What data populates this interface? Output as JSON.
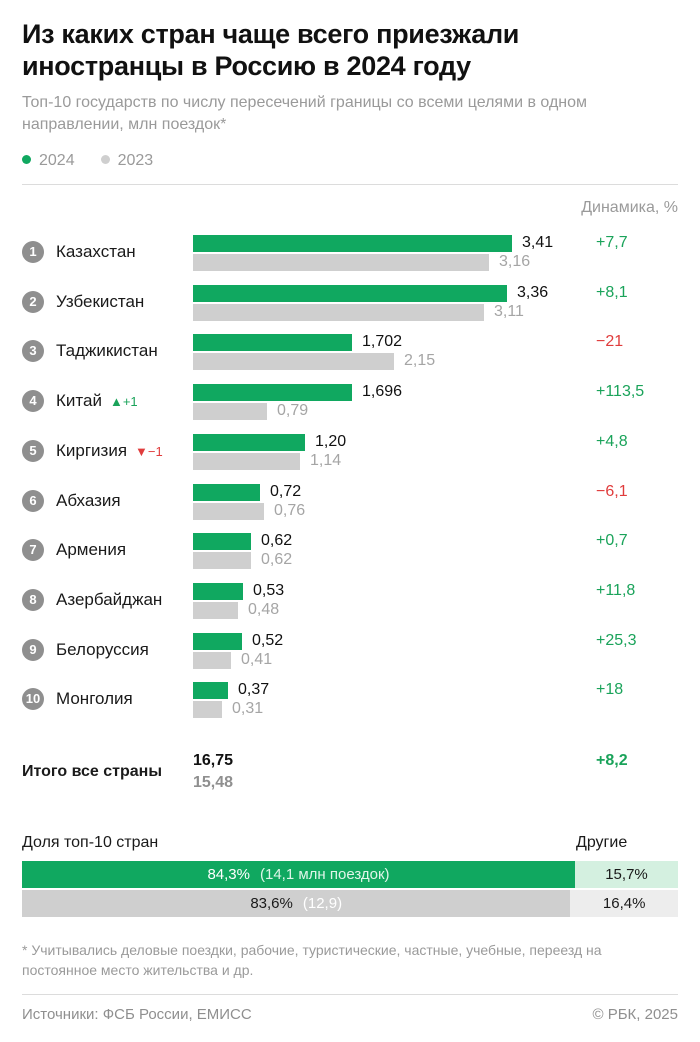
{
  "header": {
    "title": "Из каких стран чаще всего приезжали иностранцы в Россию в 2024 году",
    "subtitle": "Топ-10 государств по числу пересечений границы со всеми целями в одном направлении, млн поездок*"
  },
  "legend": [
    {
      "label": "2024",
      "color": "#10a860"
    },
    {
      "label": "2023",
      "color": "#cfcfcf"
    }
  ],
  "dynamics_header": "Динамика, %",
  "colors": {
    "current": "#10a860",
    "previous": "#cfcfcf",
    "positive": "#1aa35a",
    "negative": "#e03c3c"
  },
  "chart_data": {
    "type": "bar",
    "orientation": "horizontal",
    "xlim": [
      0,
      3.41
    ],
    "rows": [
      {
        "rank": "1",
        "country": "Казахстан",
        "v2024": 3.41,
        "v2023": 3.16,
        "label2024": "3,41",
        "label2023": "3,16",
        "dynamics": "+7,7",
        "trend": "pos"
      },
      {
        "rank": "2",
        "country": "Узбекистан",
        "v2024": 3.36,
        "v2023": 3.11,
        "label2024": "3,36",
        "label2023": "3,11",
        "dynamics": "+8,1",
        "trend": "pos"
      },
      {
        "rank": "3",
        "country": "Таджикистан",
        "v2024": 1.702,
        "v2023": 2.15,
        "label2024": "1,702",
        "label2023": "2,15",
        "dynamics": "−21",
        "trend": "neg"
      },
      {
        "rank": "4",
        "country": "Китай",
        "rank_change": "▲+1",
        "rank_change_dir": "up",
        "v2024": 1.696,
        "v2023": 0.79,
        "label2024": "1,696",
        "label2023": "0,79",
        "dynamics": "+113,5",
        "trend": "pos"
      },
      {
        "rank": "5",
        "country": "Киргизия",
        "rank_change": "▼−1",
        "rank_change_dir": "down",
        "v2024": 1.2,
        "v2023": 1.14,
        "label2024": "1,20",
        "label2023": "1,14",
        "dynamics": "+4,8",
        "trend": "pos"
      },
      {
        "rank": "6",
        "country": "Абхазия",
        "v2024": 0.72,
        "v2023": 0.76,
        "label2024": "0,72",
        "label2023": "0,76",
        "dynamics": "−6,1",
        "trend": "neg"
      },
      {
        "rank": "7",
        "country": "Армения",
        "v2024": 0.62,
        "v2023": 0.62,
        "label2024": "0,62",
        "label2023": "0,62",
        "dynamics": "+0,7",
        "trend": "pos"
      },
      {
        "rank": "8",
        "country": "Азербайджан",
        "v2024": 0.53,
        "v2023": 0.48,
        "label2024": "0,53",
        "label2023": "0,48",
        "dynamics": "+11,8",
        "trend": "pos"
      },
      {
        "rank": "9",
        "country": "Белоруссия",
        "v2024": 0.52,
        "v2023": 0.41,
        "label2024": "0,52",
        "label2023": "0,41",
        "dynamics": "+25,3",
        "trend": "pos"
      },
      {
        "rank": "10",
        "country": "Монголия",
        "v2024": 0.37,
        "v2023": 0.31,
        "label2024": "0,37",
        "label2023": "0,31",
        "dynamics": "+18",
        "trend": "pos"
      }
    ],
    "total": {
      "label": "Итого все страны",
      "v2024": "16,75",
      "v2023": "15,48",
      "dynamics": "+8,2"
    },
    "share": {
      "title": "Доля топ-10 стран",
      "other_title": "Другие",
      "rows": [
        {
          "top10_pct": 84.3,
          "top10_label": "84,3%",
          "note": "(14,1 млн поездок)",
          "other_label": "15,7%",
          "bar_color": "#10a860",
          "other_color": "#d4f0e0"
        },
        {
          "top10_pct": 83.6,
          "top10_label": "83,6%",
          "note": "(12,9)",
          "other_label": "16,4%",
          "bar_color": "#cfcfcf",
          "other_color": "#ededed"
        }
      ]
    }
  },
  "footnote": "* Учитывались деловые поездки, рабочие, туристические, частные, учебные, переезд на постоянное место жительства и др.",
  "source": "Источники: ФСБ России, ЕМИСС",
  "copyright": "© РБК, 2025"
}
